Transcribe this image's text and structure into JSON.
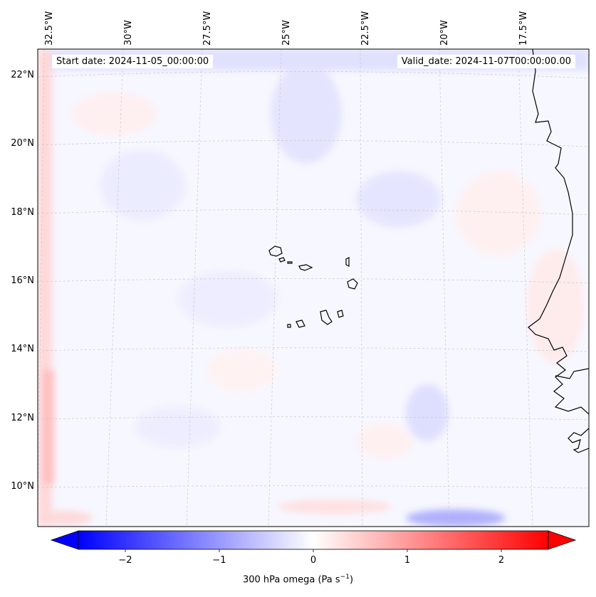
{
  "map": {
    "longitude_labels": [
      "32.5°W",
      "30°W",
      "27.5°W",
      "25°W",
      "22.5°W",
      "20°W",
      "17.5°W"
    ],
    "latitude_labels": [
      "22°N",
      "20°N",
      "18°N",
      "16°N",
      "14°N",
      "12°N",
      "10°N"
    ],
    "start_date": "Start date: 2024-11-05_00:00:00",
    "valid_date": "Valid_date: 2024-11-07T00:00:00.00",
    "field": "300 hPa omega",
    "extent": {
      "lon_min": -33.0,
      "lon_max": -15.5,
      "lat_min": 8.9,
      "lat_max": 22.8
    }
  },
  "colorbar": {
    "tick_labels": [
      "−2",
      "−1",
      "0",
      "1",
      "2"
    ],
    "title": "300 hPa omega (Pa s",
    "title_sup": "−1",
    "title_end": ")",
    "colormap": "bwr",
    "range": [
      -2.5,
      2.5
    ],
    "extend": "both",
    "colors": {
      "low": "#0000ff",
      "mid": "#ffffff",
      "high": "#ff0000"
    }
  },
  "colors": {
    "coastline": "#000000",
    "gridline": "#c8c8c8",
    "background": "#ffffff"
  }
}
